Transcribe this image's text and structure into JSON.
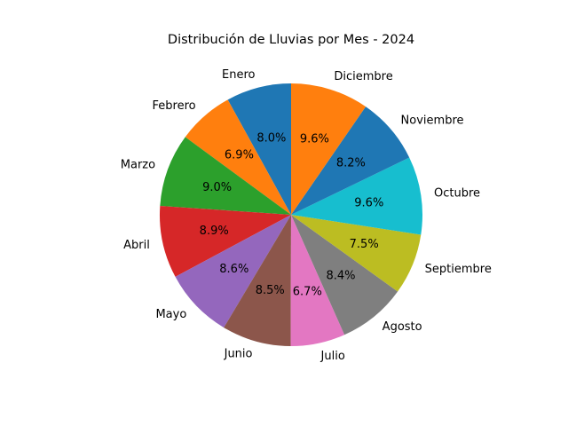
{
  "chart_data": {
    "type": "pie",
    "title": "Distribución de Lluvias por Mes - 2024",
    "start_angle_deg": 90,
    "direction": "counterclockwise",
    "slices": [
      {
        "label": "Enero",
        "value": 8.0,
        "pct_label": "8.0%",
        "color": "#1f77b4"
      },
      {
        "label": "Febrero",
        "value": 6.9,
        "pct_label": "6.9%",
        "color": "#ff7f0e"
      },
      {
        "label": "Marzo",
        "value": 9.0,
        "pct_label": "9.0%",
        "color": "#2ca02c"
      },
      {
        "label": "Abril",
        "value": 8.9,
        "pct_label": "8.9%",
        "color": "#d62728"
      },
      {
        "label": "Mayo",
        "value": 8.6,
        "pct_label": "8.6%",
        "color": "#9467bd"
      },
      {
        "label": "Junio",
        "value": 8.5,
        "pct_label": "8.5%",
        "color": "#8c564b"
      },
      {
        "label": "Julio",
        "value": 6.7,
        "pct_label": "6.7%",
        "color": "#e377c2"
      },
      {
        "label": "Agosto",
        "value": 8.4,
        "pct_label": "8.4%",
        "color": "#7f7f7f"
      },
      {
        "label": "Septiembre",
        "value": 7.5,
        "pct_label": "7.5%",
        "color": "#bcbd22"
      },
      {
        "label": "Octubre",
        "value": 9.6,
        "pct_label": "9.6%",
        "color": "#17becf"
      },
      {
        "label": "Noviembre",
        "value": 8.2,
        "pct_label": "8.2%",
        "color": "#1f77b4"
      },
      {
        "label": "Diciembre",
        "value": 9.6,
        "pct_label": "9.6%",
        "color": "#ff7f0e"
      }
    ]
  }
}
